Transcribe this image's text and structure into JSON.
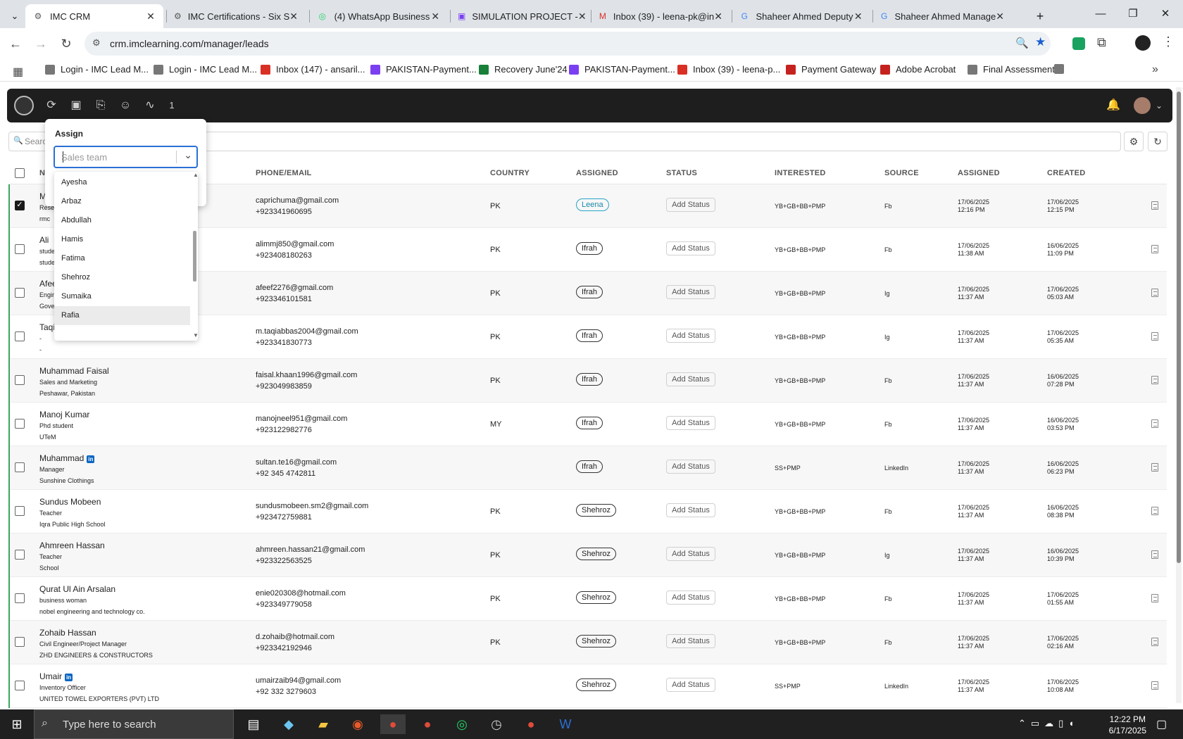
{
  "browser": {
    "tabs": [
      {
        "title": "IMC CRM",
        "active": true
      },
      {
        "title": "IMC Certifications - Six S",
        "active": false
      },
      {
        "title": "(4) WhatsApp Business",
        "active": false
      },
      {
        "title": "SIMULATION PROJECT -",
        "active": false
      },
      {
        "title": "Inbox (39) - leena-pk@in",
        "active": false
      },
      {
        "title": "Shaheer Ahmed Deputy",
        "active": false
      },
      {
        "title": "Shaheer Ahmed Manage",
        "active": false
      }
    ],
    "new_tab": "+",
    "url": "crm.imclearning.com/manager/leads",
    "bookmarks": [
      "Login - IMC Lead M...",
      "Login - IMC Lead M...",
      "Inbox (147) - ansaril...",
      "PAKISTAN-Payment...",
      "Recovery June'24",
      "PAKISTAN-Payment...",
      "Inbox (39) - leena-p...",
      "Payment Gateway",
      "Adobe Acrobat",
      "Final Assessment"
    ],
    "bookmark_more": "»"
  },
  "crm": {
    "toolbar_count": "1",
    "search_label": "Searc",
    "columns": [
      "N",
      "PHONE/EMAIL",
      "COUNTRY",
      "ASSIGNED",
      "STATUS",
      "INTERESTED",
      "SOURCE",
      "ASSIGNED",
      "CREATED"
    ],
    "rows": [
      {
        "name": "M",
        "line2": "Resea",
        "line3": "rmc",
        "linkedin": false,
        "email": "caprichuma@gmail.com",
        "phone": "+923341960695",
        "country": "PK",
        "assigned": "Leena",
        "status": "Add Status",
        "interested": "YB+GB+BB+PMP",
        "source": "Fb",
        "assigned_date": "17/06/2025",
        "assigned_time": "12:16 PM",
        "created_date": "17/06/2025",
        "created_time": "12:15 PM",
        "checked": true
      },
      {
        "name": "Ali",
        "line2": "stude",
        "line3": "stude",
        "linkedin": false,
        "email": "alimmj850@gmail.com",
        "phone": "+923408180263",
        "country": "PK",
        "assigned": "Ifrah",
        "status": "Add Status",
        "interested": "YB+GB+BB+PMP",
        "source": "Fb",
        "assigned_date": "17/06/2025",
        "assigned_time": "11:38 AM",
        "created_date": "16/06/2025",
        "created_time": "11:09 PM",
        "checked": false
      },
      {
        "name": "Afee",
        "line2": "Engin",
        "line3": "Gove",
        "linkedin": false,
        "email": "afeef2276@gmail.com",
        "phone": "+923346101581",
        "country": "PK",
        "assigned": "Ifrah",
        "status": "Add Status",
        "interested": "YB+GB+BB+PMP",
        "source": "Ig",
        "assigned_date": "17/06/2025",
        "assigned_time": "11:37 AM",
        "created_date": "17/06/2025",
        "created_time": "05:03 AM",
        "checked": false
      },
      {
        "name": "Taqi",
        "line2": "-",
        "line3": "-",
        "linkedin": false,
        "email": "m.taqiabbas2004@gmail.com",
        "phone": "+923341830773",
        "country": "PK",
        "assigned": "Ifrah",
        "status": "Add Status",
        "interested": "YB+GB+BB+PMP",
        "source": "Ig",
        "assigned_date": "17/06/2025",
        "assigned_time": "11:37 AM",
        "created_date": "17/06/2025",
        "created_time": "05:35 AM",
        "checked": false
      },
      {
        "name": "Muhammad Faisal",
        "line2": "Sales and Marketing",
        "line3": "Peshawar, Pakistan",
        "linkedin": false,
        "email": "faisal.khaan1996@gmail.com",
        "phone": "+923049983859",
        "country": "PK",
        "assigned": "Ifrah",
        "status": "Add Status",
        "interested": "YB+GB+BB+PMP",
        "source": "Fb",
        "assigned_date": "17/06/2025",
        "assigned_time": "11:37 AM",
        "created_date": "16/06/2025",
        "created_time": "07:28 PM",
        "checked": false
      },
      {
        "name": "Manoj Kumar",
        "line2": "Phd student",
        "line3": "UTeM",
        "linkedin": false,
        "email": "manojneel951@gmail.com",
        "phone": "+923122982776",
        "country": "MY",
        "assigned": "Ifrah",
        "status": "Add Status",
        "interested": "YB+GB+BB+PMP",
        "source": "Fb",
        "assigned_date": "17/06/2025",
        "assigned_time": "11:37 AM",
        "created_date": "16/06/2025",
        "created_time": "03:53 PM",
        "checked": false
      },
      {
        "name": "Muhammad",
        "line2": "Manager",
        "line3": "Sunshine Clothings",
        "linkedin": true,
        "email": "sultan.te16@gmail.com",
        "phone": "+92 345 4742811",
        "country": "",
        "assigned": "Ifrah",
        "status": "Add Status",
        "interested": "SS+PMP",
        "source": "LinkedIn",
        "assigned_date": "17/06/2025",
        "assigned_time": "11:37 AM",
        "created_date": "16/06/2025",
        "created_time": "06:23 PM",
        "checked": false
      },
      {
        "name": "Sundus Mobeen",
        "line2": "Teacher",
        "line3": "Iqra Public High School",
        "linkedin": false,
        "email": "sundusmobeen.sm2@gmail.com",
        "phone": "+923472759881",
        "country": "PK",
        "assigned": "Shehroz",
        "status": "Add Status",
        "interested": "YB+GB+BB+PMP",
        "source": "Fb",
        "assigned_date": "17/06/2025",
        "assigned_time": "11:37 AM",
        "created_date": "16/06/2025",
        "created_time": "08:38 PM",
        "checked": false
      },
      {
        "name": "Ahmreen Hassan",
        "line2": "Teacher",
        "line3": "School",
        "linkedin": false,
        "email": "ahmreen.hassan21@gmail.com",
        "phone": "+923322563525",
        "country": "PK",
        "assigned": "Shehroz",
        "status": "Add Status",
        "interested": "YB+GB+BB+PMP",
        "source": "Ig",
        "assigned_date": "17/06/2025",
        "assigned_time": "11:37 AM",
        "created_date": "16/06/2025",
        "created_time": "10:39 PM",
        "checked": false
      },
      {
        "name": "Qurat Ul Ain Arsalan",
        "line2": "business woman",
        "line3": "nobel engineering and technology co.",
        "linkedin": false,
        "email": "enie020308@hotmail.com",
        "phone": "+923349779058",
        "country": "PK",
        "assigned": "Shehroz",
        "status": "Add Status",
        "interested": "YB+GB+BB+PMP",
        "source": "Fb",
        "assigned_date": "17/06/2025",
        "assigned_time": "11:37 AM",
        "created_date": "17/06/2025",
        "created_time": "01:55 AM",
        "checked": false
      },
      {
        "name": "Zohaib Hassan",
        "line2": "Civil Engineer/Project Manager",
        "line3": "ZHD ENGINEERS & CONSTRUCTORS",
        "linkedin": false,
        "email": "d.zohaib@hotmail.com",
        "phone": "+923342192946",
        "country": "PK",
        "assigned": "Shehroz",
        "status": "Add Status",
        "interested": "YB+GB+BB+PMP",
        "source": "Fb",
        "assigned_date": "17/06/2025",
        "assigned_time": "11:37 AM",
        "created_date": "17/06/2025",
        "created_time": "02:16 AM",
        "checked": false
      },
      {
        "name": "Umair",
        "line2": "Inventory Officer",
        "line3": "UNITED TOWEL EXPORTERS (PVT) LTD",
        "linkedin": true,
        "email": "umairzaib94@gmail.com",
        "phone": "+92 332 3279603",
        "country": "",
        "assigned": "Shehroz",
        "status": "Add Status",
        "interested": "SS+PMP",
        "source": "LinkedIn",
        "assigned_date": "17/06/2025",
        "assigned_time": "11:37 AM",
        "created_date": "17/06/2025",
        "created_time": "10:08 AM",
        "checked": false
      }
    ]
  },
  "assign_popup": {
    "title": "Assign",
    "placeholder": "Sales team",
    "options": [
      "Ayesha",
      "Arbaz",
      "Abdullah",
      "Hamis",
      "Fatima",
      "Shehroz",
      "Sumaika",
      "Rafia"
    ],
    "highlighted": "Rafia"
  },
  "taskbar": {
    "search_placeholder": "Type here to search",
    "time": "12:22 PM",
    "date": "6/17/2025"
  }
}
